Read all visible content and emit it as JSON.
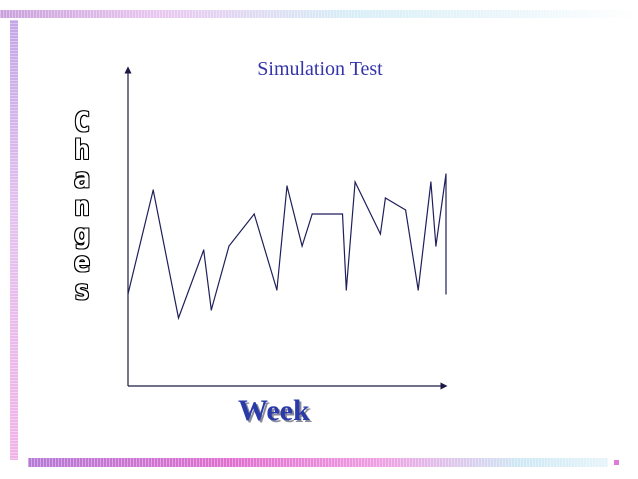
{
  "chart_data": {
    "type": "line",
    "title": "Simulation Test",
    "xlabel": "Week",
    "ylabel": "Changes",
    "x": [
      0,
      1,
      2,
      3,
      3.3,
      4,
      5,
      5.9,
      6.3,
      6.9,
      7.3,
      8.5,
      8.65,
      9,
      10,
      10.2,
      11,
      11.5,
      12,
      12.2
    ],
    "values": [
      23,
      49,
      17,
      34,
      19,
      35,
      43,
      24,
      50,
      35,
      43,
      43,
      24,
      51,
      38,
      47,
      44,
      24,
      51,
      35
    ],
    "trailing": [
      {
        "x": 12.2,
        "y": 35
      },
      {
        "x": 12.6,
        "y": 53
      },
      {
        "x": 12.6,
        "y": 23
      }
    ],
    "xlim": [
      0,
      12.6
    ],
    "ylim": [
      0,
      80
    ],
    "grid": false,
    "legend": "none",
    "line_color": "#1f1f5a",
    "axis_color": "#1a1a44",
    "title_color": "#3333aa",
    "xlabel_color": "#2a3aa8"
  }
}
